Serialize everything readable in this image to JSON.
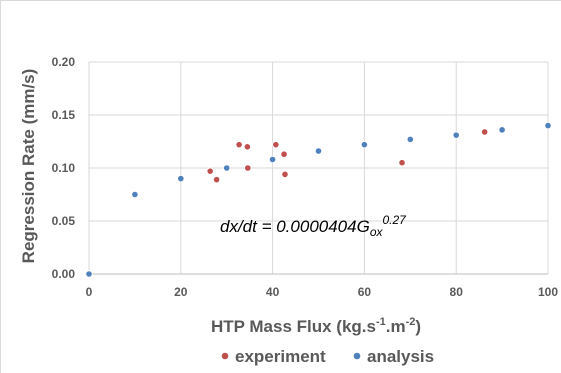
{
  "chart_data": {
    "type": "scatter",
    "xlabel": "HTP Mass Flux (kg.s⁻¹.m⁻²)",
    "ylabel": "Regression Rate (mm/s)",
    "xlim": [
      0,
      100
    ],
    "ylim": [
      0,
      0.2
    ],
    "x_ticks": [
      "0",
      "20",
      "40",
      "60",
      "80",
      "100"
    ],
    "y_ticks": [
      "0.00",
      "0.05",
      "0.10",
      "0.15",
      "0.20"
    ],
    "grid": true,
    "legend_position": "bottom",
    "annotation": {
      "main": "dx/dt = 0.0000404G",
      "subscript": "ox",
      "superscript": "0.27"
    },
    "series": [
      {
        "name": "experiment",
        "color": "#c0504d",
        "points": [
          {
            "x": 26.4,
            "y": 0.097
          },
          {
            "x": 27.8,
            "y": 0.089
          },
          {
            "x": 32.7,
            "y": 0.122
          },
          {
            "x": 34.5,
            "y": 0.12
          },
          {
            "x": 34.6,
            "y": 0.1
          },
          {
            "x": 40.7,
            "y": 0.122
          },
          {
            "x": 42.5,
            "y": 0.113
          },
          {
            "x": 42.7,
            "y": 0.094
          },
          {
            "x": 68.2,
            "y": 0.105
          },
          {
            "x": 86.2,
            "y": 0.134
          }
        ]
      },
      {
        "name": "analysis",
        "color": "#4f81bd",
        "points": [
          {
            "x": 0,
            "y": 0.0
          },
          {
            "x": 10,
            "y": 0.075
          },
          {
            "x": 20,
            "y": 0.09
          },
          {
            "x": 30,
            "y": 0.1
          },
          {
            "x": 40,
            "y": 0.108
          },
          {
            "x": 50,
            "y": 0.116
          },
          {
            "x": 60,
            "y": 0.122
          },
          {
            "x": 70,
            "y": 0.127
          },
          {
            "x": 80,
            "y": 0.131
          },
          {
            "x": 90,
            "y": 0.136
          },
          {
            "x": 100,
            "y": 0.14
          }
        ]
      }
    ]
  }
}
